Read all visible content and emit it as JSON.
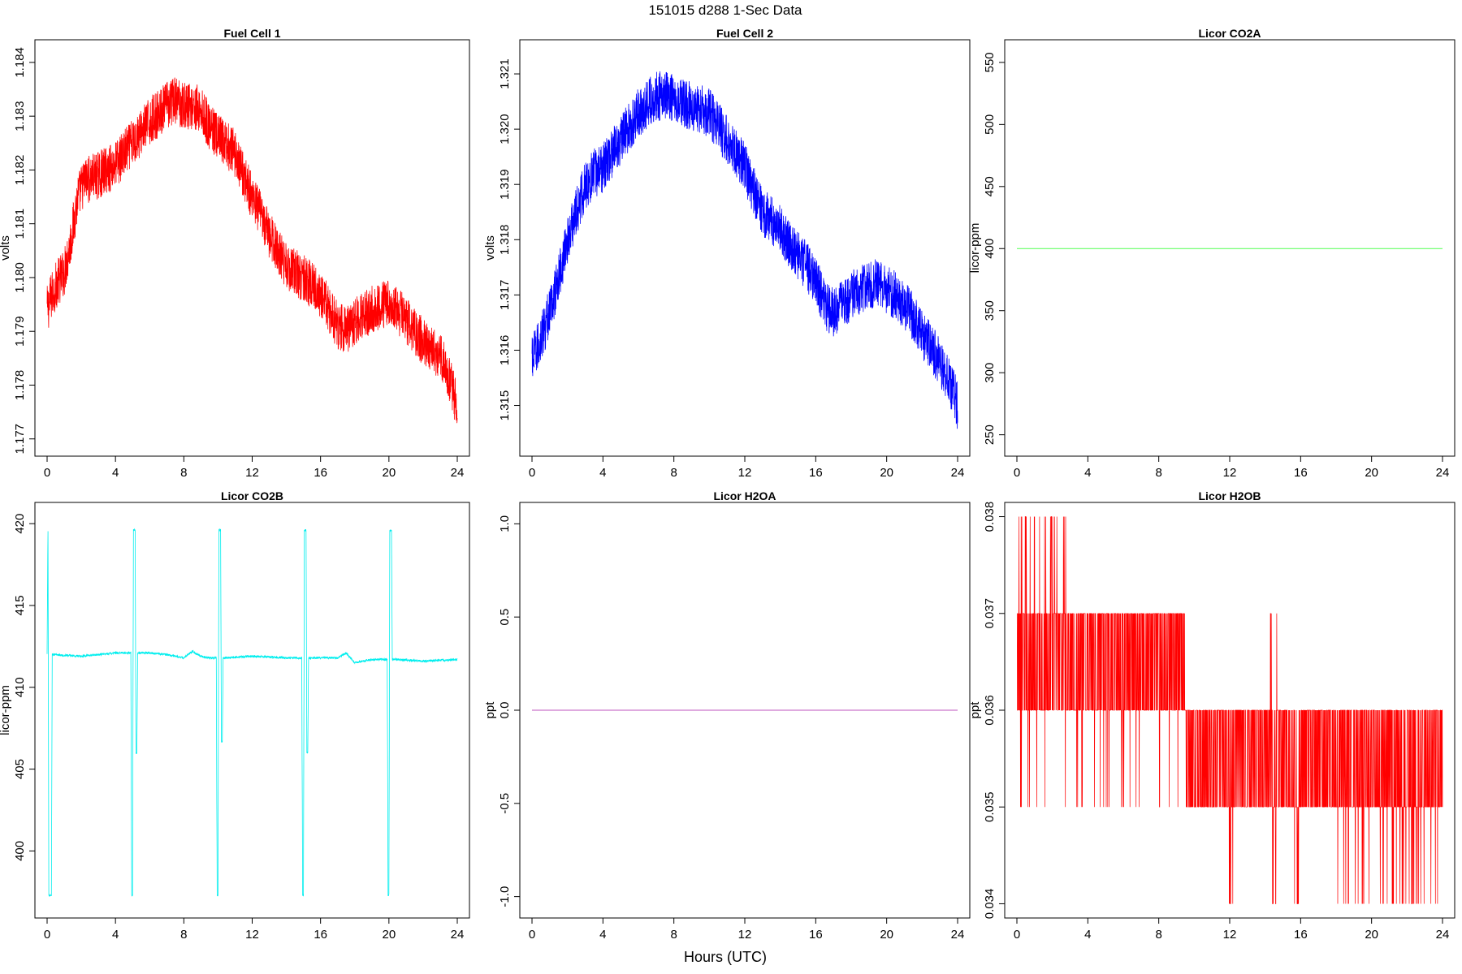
{
  "figure": {
    "title": "151015   d288   1-Sec Data",
    "xlabel": "Hours (UTC)"
  },
  "chart_data": [
    {
      "type": "line",
      "title": "Fuel Cell 1",
      "ylabel": "volts",
      "xlim": [
        0,
        24
      ],
      "ylim": [
        1.1768,
        1.1843
      ],
      "xticks": [
        "0",
        "4",
        "8",
        "12",
        "16",
        "20",
        "24"
      ],
      "yticks": [
        "1.177",
        "1.178",
        "1.179",
        "1.180",
        "1.181",
        "1.182",
        "1.183",
        "1.184"
      ],
      "color": "#ff0000",
      "series": [
        {
          "x": [
            0,
            0.3,
            0.6,
            1,
            1.4,
            1.8,
            2.2,
            3,
            4,
            5,
            6,
            7,
            7.5,
            8,
            8.5,
            9,
            9.5,
            10,
            11,
            12,
            13,
            14,
            15,
            16,
            16.5,
            17,
            17.5,
            18,
            18.5,
            19,
            19.5,
            20,
            20.5,
            21,
            21.5,
            22,
            23,
            23.5,
            24
          ],
          "y": [
            1.1794,
            1.1797,
            1.1799,
            1.1801,
            1.1807,
            1.1815,
            1.1818,
            1.1819,
            1.1821,
            1.1825,
            1.1829,
            1.1832,
            1.1833,
            1.1832,
            1.1832,
            1.1831,
            1.1828,
            1.1826,
            1.1823,
            1.1815,
            1.1808,
            1.1802,
            1.18,
            1.1797,
            1.1794,
            1.1791,
            1.179,
            1.1792,
            1.1793,
            1.1794,
            1.1795,
            1.1795,
            1.1794,
            1.1792,
            1.179,
            1.1788,
            1.1785,
            1.1782,
            1.1776
          ]
        }
      ],
      "noise": 0.00045
    },
    {
      "type": "line",
      "title": "Fuel Cell 2",
      "ylabel": "volts",
      "xlim": [
        0,
        24
      ],
      "ylim": [
        1.3142,
        1.3215
      ],
      "xticks": [
        "0",
        "4",
        "8",
        "12",
        "16",
        "20",
        "24"
      ],
      "yticks": [
        "1.315",
        "1.316",
        "1.317",
        "1.318",
        "1.319",
        "1.320",
        "1.321"
      ],
      "color": "#0000ff",
      "series": [
        {
          "x": [
            0,
            0.5,
            1,
            1.5,
            2,
            2.5,
            3,
            3.5,
            4,
            5,
            6,
            7,
            7.5,
            8,
            8.5,
            9,
            10,
            11,
            12,
            13,
            14,
            15,
            16,
            16.5,
            17,
            17.5,
            18,
            18.5,
            19,
            19.5,
            20,
            20.5,
            21,
            21.5,
            22,
            23,
            23.5,
            24
          ],
          "y": [
            1.3158,
            1.3162,
            1.3167,
            1.3173,
            1.318,
            1.3185,
            1.319,
            1.3192,
            1.3193,
            1.3198,
            1.3203,
            1.3206,
            1.3206,
            1.3206,
            1.3205,
            1.3204,
            1.3203,
            1.3198,
            1.3193,
            1.3185,
            1.3182,
            1.3177,
            1.3173,
            1.3168,
            1.3167,
            1.3168,
            1.317,
            1.3171,
            1.3172,
            1.3172,
            1.3171,
            1.317,
            1.3168,
            1.3166,
            1.3163,
            1.3158,
            1.3155,
            1.315
          ]
        }
      ],
      "noise": 0.00045
    },
    {
      "type": "line",
      "title": "Licor CO2A",
      "ylabel": "licor-ppm",
      "xlim": [
        0,
        24
      ],
      "ylim": [
        238,
        563
      ],
      "xticks": [
        "0",
        "4",
        "8",
        "12",
        "16",
        "20",
        "24"
      ],
      "yticks": [
        "250",
        "300",
        "350",
        "400",
        "450",
        "500",
        "550"
      ],
      "color": "#66ff66",
      "series": [
        {
          "x": [
            0,
            24
          ],
          "y": [
            400,
            400
          ]
        }
      ],
      "noise": 0
    },
    {
      "type": "line",
      "title": "Licor CO2B",
      "ylabel": "licor-ppm",
      "xlim": [
        0,
        24
      ],
      "ylim": [
        396.3,
        420.9
      ],
      "xticks": [
        "0",
        "4",
        "8",
        "12",
        "16",
        "20",
        "24"
      ],
      "yticks": [
        "400",
        "405",
        "410",
        "415",
        "420"
      ],
      "color": "#00eeee",
      "series": [
        {
          "x": [
            0,
            0.05,
            0.1,
            0.25,
            0.3,
            0.35,
            2,
            4,
            4.9,
            4.95,
            5,
            5.05,
            5.15,
            5.2,
            5.25,
            5.3,
            5.35,
            5.45,
            5.5,
            6,
            7,
            8,
            8.5,
            9,
            9.5,
            9.9,
            9.95,
            10,
            10.05,
            10.15,
            10.2,
            10.25,
            10.3,
            10.35,
            10.45,
            10.5,
            12,
            14,
            14.9,
            14.95,
            15,
            15.05,
            15.15,
            15.2,
            15.25,
            15.3,
            15.35,
            15.45,
            15.5,
            16,
            17,
            17.5,
            18,
            19,
            19.9,
            19.95,
            20,
            20.05,
            20.15,
            20.2,
            20.25,
            20.3,
            20.35,
            20.45,
            20.5,
            22,
            24
          ],
          "y": [
            412,
            419.6,
            397.3,
            397.3,
            412,
            412,
            411.9,
            412.1,
            412.1,
            397.3,
            397.3,
            419.6,
            419.6,
            406,
            406,
            412.1,
            412.1,
            412.1,
            412.1,
            412.1,
            412,
            411.8,
            412.2,
            411.9,
            411.8,
            411.8,
            397.3,
            397.3,
            419.6,
            419.6,
            406.7,
            406.7,
            411.8,
            411.8,
            411.8,
            411.8,
            411.9,
            411.8,
            411.8,
            397.3,
            397.3,
            419.6,
            419.6,
            406,
            406,
            411.8,
            411.8,
            411.8,
            411.8,
            411.8,
            411.8,
            412.1,
            411.5,
            411.7,
            411.7,
            397.3,
            397.3,
            419.6,
            419.6,
            411.7,
            411.7,
            411.7,
            411.7,
            411.7,
            411.7,
            411.6,
            411.7
          ]
        }
      ],
      "noise": 0.07
    },
    {
      "type": "line",
      "title": "Licor H2OA",
      "ylabel": "ppt",
      "xlim": [
        0,
        24
      ],
      "ylim": [
        -1.08,
        1.08
      ],
      "xticks": [
        "0",
        "4",
        "8",
        "12",
        "16",
        "20",
        "24"
      ],
      "yticks": [
        "-1.0",
        "-0.5",
        "0.0",
        "0.5",
        "1.0"
      ],
      "color": "#cc77cc",
      "series": [
        {
          "x": [
            0,
            24
          ],
          "y": [
            0,
            0
          ]
        }
      ],
      "noise": 0
    },
    {
      "type": "line",
      "title": "Licor H2OB",
      "ylabel": "ppt",
      "xlim": [
        0,
        24
      ],
      "ylim": [
        0.03392,
        0.03808
      ],
      "xticks": [
        "0",
        "4",
        "8",
        "12",
        "16",
        "20",
        "24"
      ],
      "yticks": [
        "0.034",
        "0.035",
        "0.036",
        "0.037",
        "0.038"
      ],
      "color": "#ff0000",
      "series": [
        {
          "x": [
            0,
            8,
            9,
            10,
            11,
            24
          ],
          "y": [
            0.0365,
            0.0365,
            0.036,
            0.0355,
            0.0355,
            0.0355
          ]
        }
      ],
      "levels": [
        0.034,
        0.035,
        0.036,
        0.037,
        0.038
      ],
      "noise": 0
    }
  ]
}
